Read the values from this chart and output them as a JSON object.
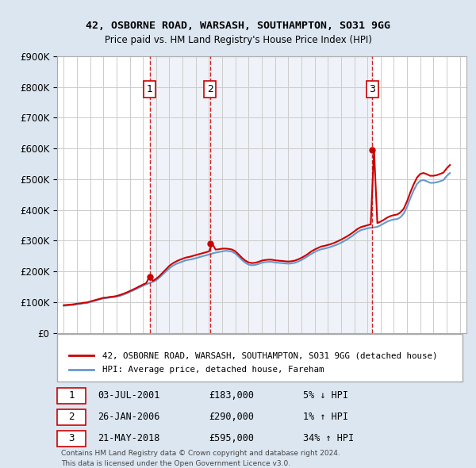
{
  "title": "42, OSBORNE ROAD, WARSASH, SOUTHAMPTON, SO31 9GG",
  "subtitle": "Price paid vs. HM Land Registry's House Price Index (HPI)",
  "legend_line1": "42, OSBORNE ROAD, WARSASH, SOUTHAMPTON, SO31 9GG (detached house)",
  "legend_line2": "HPI: Average price, detached house, Fareham",
  "footer1": "Contains HM Land Registry data © Crown copyright and database right 2024.",
  "footer2": "This data is licensed under the Open Government Licence v3.0.",
  "transactions": [
    {
      "num": 1,
      "date": "03-JUL-2001",
      "price": "£183,000",
      "hpi": "5% ↓ HPI"
    },
    {
      "num": 2,
      "date": "26-JAN-2006",
      "price": "£290,000",
      "hpi": "1% ↑ HPI"
    },
    {
      "num": 3,
      "date": "21-MAY-2018",
      "price": "£595,000",
      "hpi": "34% ↑ HPI"
    }
  ],
  "transaction_years": [
    2001.5,
    2006.08,
    2018.38
  ],
  "transaction_prices": [
    183000,
    290000,
    595000
  ],
  "ylim": [
    0,
    900000
  ],
  "xlim_left": 1994.5,
  "xlim_right": 2025.5,
  "red_color": "#cc0000",
  "blue_color": "#6699cc",
  "background_color": "#dce6f1",
  "plot_bg_color": "#ffffff",
  "grid_color": "#cccccc",
  "hpi_years": [
    1995,
    1995.25,
    1995.5,
    1995.75,
    1996,
    1996.25,
    1996.5,
    1996.75,
    1997,
    1997.25,
    1997.5,
    1997.75,
    1998,
    1998.25,
    1998.5,
    1998.75,
    1999,
    1999.25,
    1999.5,
    1999.75,
    2000,
    2000.25,
    2000.5,
    2000.75,
    2001,
    2001.25,
    2001.5,
    2001.75,
    2002,
    2002.25,
    2002.5,
    2002.75,
    2003,
    2003.25,
    2003.5,
    2003.75,
    2004,
    2004.25,
    2004.5,
    2004.75,
    2005,
    2005.25,
    2005.5,
    2005.75,
    2006,
    2006.25,
    2006.5,
    2006.75,
    2007,
    2007.25,
    2007.5,
    2007.75,
    2008,
    2008.25,
    2008.5,
    2008.75,
    2009,
    2009.25,
    2009.5,
    2009.75,
    2010,
    2010.25,
    2010.5,
    2010.75,
    2011,
    2011.25,
    2011.5,
    2011.75,
    2012,
    2012.25,
    2012.5,
    2012.75,
    2013,
    2013.25,
    2013.5,
    2013.75,
    2014,
    2014.25,
    2014.5,
    2014.75,
    2015,
    2015.25,
    2015.5,
    2015.75,
    2016,
    2016.25,
    2016.5,
    2016.75,
    2017,
    2017.25,
    2017.5,
    2017.75,
    2018,
    2018.25,
    2018.5,
    2018.75,
    2019,
    2019.25,
    2019.5,
    2019.75,
    2020,
    2020.25,
    2020.5,
    2020.75,
    2021,
    2021.25,
    2021.5,
    2021.75,
    2022,
    2022.25,
    2022.5,
    2022.75,
    2023,
    2023.25,
    2023.5,
    2023.75,
    2024,
    2024.25
  ],
  "hpi_values": [
    88000,
    89000,
    90000,
    91000,
    93000,
    94000,
    96000,
    97000,
    100000,
    103000,
    106000,
    109000,
    112000,
    113000,
    115000,
    116000,
    118000,
    120000,
    124000,
    128000,
    133000,
    138000,
    143000,
    148000,
    153000,
    158000,
    162000,
    166000,
    171000,
    180000,
    190000,
    200000,
    210000,
    218000,
    224000,
    228000,
    232000,
    236000,
    238000,
    240000,
    243000,
    246000,
    249000,
    252000,
    255000,
    258000,
    261000,
    263000,
    265000,
    267000,
    266000,
    264000,
    258000,
    248000,
    237000,
    228000,
    222000,
    220000,
    221000,
    224000,
    228000,
    230000,
    231000,
    231000,
    229000,
    228000,
    227000,
    226000,
    225000,
    226000,
    228000,
    232000,
    237000,
    243000,
    250000,
    257000,
    263000,
    268000,
    272000,
    274000,
    277000,
    280000,
    284000,
    288000,
    293000,
    299000,
    305000,
    312000,
    320000,
    328000,
    334000,
    337000,
    340000,
    342000,
    343000,
    345000,
    350000,
    356000,
    362000,
    366000,
    369000,
    370000,
    376000,
    388000,
    410000,
    438000,
    463000,
    484000,
    495000,
    497000,
    493000,
    488000,
    488000,
    490000,
    493000,
    497000,
    510000,
    520000
  ],
  "red_years": [
    1995,
    1995.25,
    1995.5,
    1995.75,
    1996,
    1996.25,
    1996.5,
    1996.75,
    1997,
    1997.25,
    1997.5,
    1997.75,
    1998,
    1998.25,
    1998.5,
    1998.75,
    1999,
    1999.25,
    1999.5,
    1999.75,
    2000,
    2000.25,
    2000.5,
    2000.75,
    2001,
    2001.25,
    2001.5,
    2001.75,
    2002,
    2002.25,
    2002.5,
    2002.75,
    2003,
    2003.25,
    2003.5,
    2003.75,
    2004,
    2004.25,
    2004.5,
    2004.75,
    2005,
    2005.25,
    2005.5,
    2005.75,
    2006,
    2006.25,
    2006.5,
    2006.75,
    2007,
    2007.25,
    2007.5,
    2007.75,
    2008,
    2008.25,
    2008.5,
    2008.75,
    2009,
    2009.25,
    2009.5,
    2009.75,
    2010,
    2010.25,
    2010.5,
    2010.75,
    2011,
    2011.25,
    2011.5,
    2011.75,
    2012,
    2012.25,
    2012.5,
    2012.75,
    2013,
    2013.25,
    2013.5,
    2013.75,
    2014,
    2014.25,
    2014.5,
    2014.75,
    2015,
    2015.25,
    2015.5,
    2015.75,
    2016,
    2016.25,
    2016.5,
    2016.75,
    2017,
    2017.25,
    2017.5,
    2017.75,
    2018,
    2018.25,
    2018.5,
    2018.75,
    2019,
    2019.25,
    2019.5,
    2019.75,
    2020,
    2020.25,
    2020.5,
    2020.75,
    2021,
    2021.25,
    2021.5,
    2021.75,
    2022,
    2022.25,
    2022.5,
    2022.75,
    2023,
    2023.25,
    2023.5,
    2023.75,
    2024,
    2024.25
  ],
  "red_values": [
    90000,
    91000,
    92000,
    93000,
    95000,
    96000,
    98000,
    99000,
    102000,
    105000,
    108000,
    111000,
    114000,
    115000,
    117000,
    118000,
    120000,
    123000,
    127000,
    131000,
    136000,
    141000,
    146000,
    152000,
    157000,
    162000,
    183000,
    169000,
    176000,
    185000,
    196000,
    207000,
    218000,
    226000,
    232000,
    237000,
    241000,
    245000,
    247000,
    250000,
    253000,
    256000,
    259000,
    262000,
    265000,
    290000,
    271000,
    272000,
    274000,
    274000,
    273000,
    271000,
    265000,
    255000,
    244000,
    235000,
    229000,
    227000,
    228000,
    231000,
    235000,
    237000,
    238000,
    238000,
    236000,
    235000,
    234000,
    233000,
    232000,
    233000,
    235000,
    239000,
    244000,
    250000,
    257000,
    265000,
    271000,
    276000,
    281000,
    283000,
    286000,
    289000,
    293000,
    298000,
    303000,
    309000,
    315000,
    322000,
    330000,
    338000,
    344000,
    347000,
    350000,
    353000,
    595000,
    357000,
    362000,
    368000,
    375000,
    380000,
    383000,
    385000,
    392000,
    404000,
    428000,
    457000,
    483000,
    505000,
    517000,
    520000,
    516000,
    511000,
    511000,
    513000,
    517000,
    521000,
    535000,
    546000
  ],
  "ytick_labels": [
    "£0",
    "£100K",
    "£200K",
    "£300K",
    "£400K",
    "£500K",
    "£600K",
    "£700K",
    "£800K",
    "£900K"
  ],
  "ytick_values": [
    0,
    100000,
    200000,
    300000,
    400000,
    500000,
    600000,
    700000,
    800000,
    900000
  ]
}
